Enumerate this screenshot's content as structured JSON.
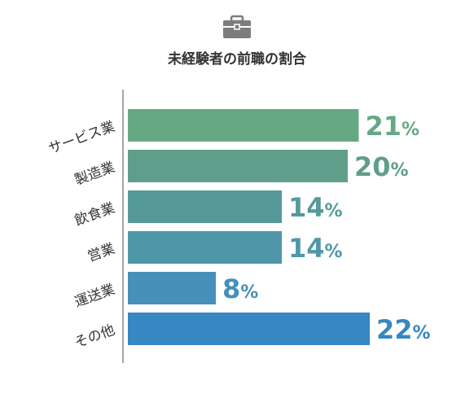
{
  "chart_data": {
    "type": "bar",
    "orientation": "horizontal",
    "title": "未経験者の前職の割合",
    "title_icon": "briefcase-icon",
    "categories": [
      "サービス業",
      "製造業",
      "飲食業",
      "営業",
      "運送業",
      "その他"
    ],
    "values": [
      21,
      20,
      14,
      14,
      8,
      22
    ],
    "value_labels": [
      "21",
      "20",
      "14",
      "14",
      "8",
      "22"
    ],
    "value_suffix": "%",
    "xlim": [
      0,
      25
    ],
    "grid": false,
    "legend": "none",
    "colors": {
      "bars": [
        "#67a884",
        "#5f9e8b",
        "#559a98",
        "#4f97a8",
        "#4690ba",
        "#3687c2"
      ],
      "category_text": "#333333",
      "title_text": "#333333",
      "axis_line": "#888888",
      "icon": "#7d7d7d"
    }
  }
}
